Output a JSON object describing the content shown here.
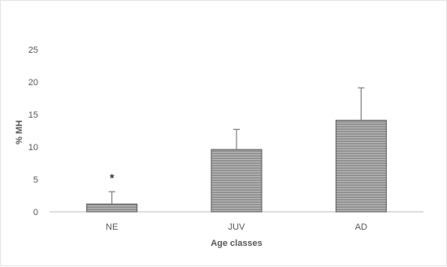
{
  "chart_data": {
    "type": "bar",
    "categories": [
      "NE",
      "JUV",
      "AD"
    ],
    "values": [
      1.2,
      9.6,
      14.1
    ],
    "error_upper": [
      3.1,
      12.7,
      19.1
    ],
    "annotations": [
      {
        "category": "NE",
        "text": "*"
      }
    ],
    "xlabel": "Age classes",
    "ylabel": "% MH",
    "ylim": [
      0,
      25
    ],
    "yticks": [
      "0",
      "5",
      "10",
      "15",
      "20",
      "25"
    ],
    "grid": false,
    "legend": "none",
    "bar_fill": "#8c8c8c",
    "bar_stripe": "#b8b8b8",
    "bar_edge": "#5a5a5a",
    "axis_color": "#bfbfbf",
    "error_color": "#7f7f7f"
  }
}
